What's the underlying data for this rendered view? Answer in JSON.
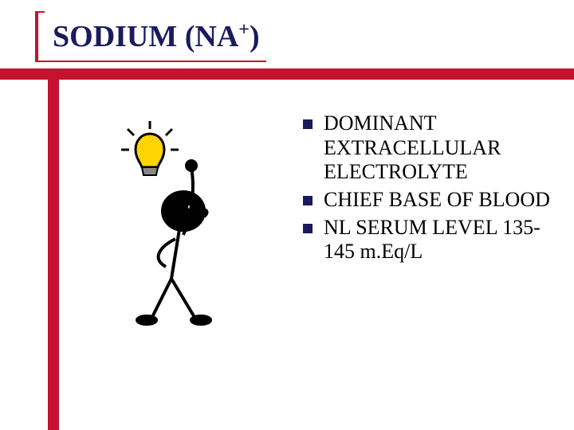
{
  "slide": {
    "title_html": "SODIUM (NA<sup>+</sup>)",
    "frame_color": "#c41230",
    "title_color": "#1a1a5e",
    "title_fontsize": 38,
    "bullet_marker_color": "#1a1a5e",
    "bullet_fontsize": 26,
    "background_color": "#ffffff",
    "bullets": [
      "DOMINANT EXTRACELLULAR ELECTROLYTE",
      "CHIEF BASE OF BLOOD",
      "NL SERUM LEVEL 135-145 m.Eq/L"
    ],
    "clipart": {
      "description": "stick-figure-lightbulb-idea",
      "bulb_fill": "#ffd400",
      "bulb_stroke": "#000000",
      "figure_stroke": "#000000"
    }
  }
}
